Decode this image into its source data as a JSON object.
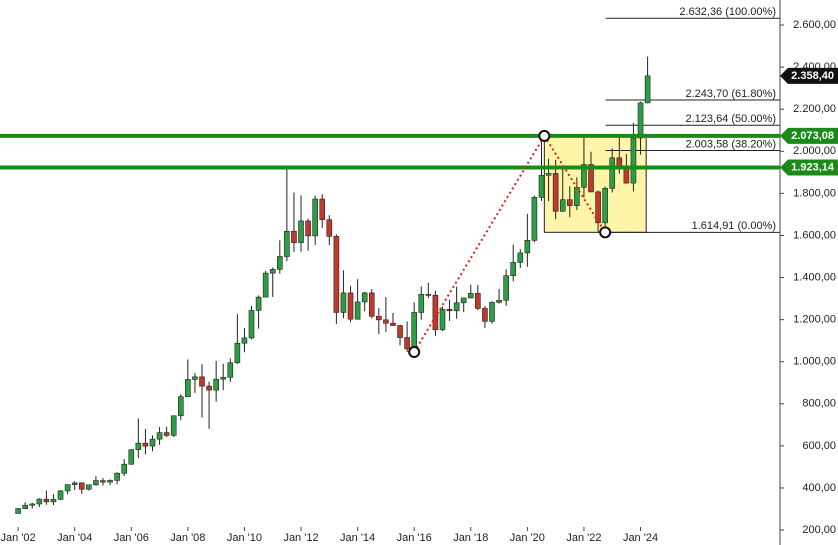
{
  "chart_data": {
    "type": "candlestick",
    "x": [
      2002,
      2002.25,
      2002.5,
      2002.75,
      2003,
      2003.25,
      2003.5,
      2003.75,
      2004,
      2004.25,
      2004.5,
      2004.75,
      2005,
      2005.25,
      2005.5,
      2005.75,
      2006,
      2006.25,
      2006.5,
      2006.75,
      2007,
      2007.25,
      2007.5,
      2007.75,
      2008,
      2008.25,
      2008.5,
      2008.75,
      2009,
      2009.25,
      2009.5,
      2009.75,
      2010,
      2010.25,
      2010.5,
      2010.75,
      2011,
      2011.25,
      2011.5,
      2011.75,
      2012,
      2012.25,
      2012.5,
      2012.75,
      2013,
      2013.25,
      2013.5,
      2013.75,
      2014,
      2014.25,
      2014.5,
      2014.75,
      2015,
      2015.25,
      2015.5,
      2015.75,
      2016,
      2016.25,
      2016.5,
      2016.75,
      2017,
      2017.25,
      2017.5,
      2017.75,
      2018,
      2018.25,
      2018.5,
      2018.75,
      2019,
      2019.25,
      2019.5,
      2019.75,
      2020,
      2020.25,
      2020.5,
      2020.75,
      2021,
      2021.25,
      2021.5,
      2021.75,
      2022,
      2022.25,
      2022.5,
      2022.75,
      2023,
      2023.25,
      2023.5,
      2023.75,
      2024,
      2024.25
    ],
    "open": [
      279,
      302,
      318,
      324,
      347,
      334,
      346,
      386,
      416,
      424,
      394,
      415,
      435,
      428,
      436,
      470,
      513,
      582,
      613,
      599,
      632,
      663,
      650,
      743,
      834,
      916,
      928,
      884,
      865,
      917,
      926,
      995,
      1088,
      1113,
      1244,
      1307,
      1421,
      1439,
      1500,
      1620,
      1566,
      1669,
      1598,
      1773,
      1675,
      1596,
      1234,
      1327,
      1202,
      1284,
      1327,
      1216,
      1199,
      1183,
      1172,
      1115,
      1061,
      1234,
      1320,
      1316,
      1152,
      1249,
      1242,
      1280,
      1303,
      1325,
      1253,
      1192,
      1282,
      1292,
      1409,
      1472,
      1517,
      1577,
      1781,
      1886,
      1895,
      1715,
      1770,
      1742,
      1829,
      1937,
      1807,
      1660,
      1824,
      1969,
      1919,
      1849,
      2063,
      2230
    ],
    "high": [
      305,
      332,
      330,
      351,
      388,
      371,
      390,
      417,
      432,
      427,
      416,
      456,
      447,
      441,
      475,
      537,
      585,
      730,
      680,
      650,
      690,
      691,
      745,
      845,
      1011,
      946,
      988,
      905,
      1004,
      990,
      1016,
      1226,
      1160,
      1265,
      1315,
      1431,
      1448,
      1577,
      1921,
      1804,
      1790,
      1680,
      1790,
      1796,
      1696,
      1605,
      1434,
      1361,
      1392,
      1332,
      1345,
      1255,
      1307,
      1232,
      1175,
      1191,
      1282,
      1358,
      1375,
      1338,
      1262,
      1295,
      1357,
      1298,
      1366,
      1365,
      1265,
      1287,
      1346,
      1439,
      1557,
      1535,
      1703,
      1789,
      2073,
      1965,
      1959,
      1916,
      1834,
      1877,
      2070,
      1998,
      1814,
      1833,
      2014,
      2079,
      1987,
      2135,
      2236,
      2450
    ],
    "low": [
      277,
      300,
      302,
      310,
      320,
      319,
      342,
      370,
      390,
      372,
      388,
      411,
      411,
      414,
      418,
      456,
      510,
      543,
      560,
      574,
      605,
      642,
      643,
      722,
      833,
      852,
      735,
      681,
      810,
      865,
      904,
      990,
      1045,
      1106,
      1157,
      1305,
      1308,
      1418,
      1478,
      1522,
      1523,
      1527,
      1555,
      1636,
      1554,
      1180,
      1207,
      1187,
      1200,
      1240,
      1206,
      1131,
      1142,
      1170,
      1077,
      1046,
      1060,
      1200,
      1302,
      1123,
      1146,
      1194,
      1204,
      1236,
      1302,
      1245,
      1160,
      1180,
      1277,
      1266,
      1382,
      1445,
      1451,
      1568,
      1764,
      1764,
      1677,
      1713,
      1687,
      1721,
      1780,
      1805,
      1615,
      1617,
      1804,
      1893,
      1848,
      1810,
      1984,
      2228
    ],
    "close": [
      302,
      318,
      324,
      347,
      334,
      346,
      386,
      416,
      424,
      394,
      415,
      435,
      428,
      436,
      470,
      513,
      582,
      613,
      599,
      632,
      663,
      650,
      743,
      834,
      916,
      928,
      884,
      865,
      917,
      926,
      995,
      1088,
      1113,
      1244,
      1307,
      1421,
      1439,
      1500,
      1620,
      1566,
      1669,
      1598,
      1773,
      1675,
      1596,
      1234,
      1327,
      1202,
      1284,
      1327,
      1216,
      1199,
      1183,
      1172,
      1115,
      1061,
      1234,
      1320,
      1316,
      1152,
      1249,
      1242,
      1280,
      1303,
      1325,
      1253,
      1192,
      1282,
      1292,
      1409,
      1472,
      1517,
      1577,
      1781,
      1886,
      1895,
      1715,
      1770,
      1742,
      1829,
      1937,
      1807,
      1660,
      1824,
      1969,
      1919,
      1849,
      2063,
      2230,
      2358.4
    ],
    "up_color": "#2e9e44",
    "down_color": "#c0392b",
    "xlim": [
      2001.36,
      2028.93
    ],
    "xticks": [
      {
        "value": 2002,
        "label": "Jan '02"
      },
      {
        "value": 2004,
        "label": "Jan '04"
      },
      {
        "value": 2006,
        "label": "Jan '06"
      },
      {
        "value": 2008,
        "label": "Jan '08"
      },
      {
        "value": 2010,
        "label": "Jan '10"
      },
      {
        "value": 2012,
        "label": "Jan '12"
      },
      {
        "value": 2014,
        "label": "Jan '14"
      },
      {
        "value": 2016,
        "label": "Jan '16"
      },
      {
        "value": 2018,
        "label": "Jan '18"
      },
      {
        "value": 2020,
        "label": "Jan '20"
      },
      {
        "value": 2022,
        "label": "Jan '22"
      },
      {
        "value": 2024,
        "label": "Jan '24"
      }
    ],
    "ylim": [
      129,
      2719
    ],
    "yticks": [
      {
        "value": 200,
        "label": "200,00"
      },
      {
        "value": 400,
        "label": "400,00"
      },
      {
        "value": 600,
        "label": "600,00"
      },
      {
        "value": 800,
        "label": "800,00"
      },
      {
        "value": 1000,
        "label": "1.000,00"
      },
      {
        "value": 1200,
        "label": "1.200,00"
      },
      {
        "value": 1400,
        "label": "1.400,00"
      },
      {
        "value": 1600,
        "label": "1.600,00"
      },
      {
        "value": 1800,
        "label": "1.800,00"
      },
      {
        "value": 2000,
        "label": "2.000,00"
      },
      {
        "value": 2200,
        "label": "2.200,00"
      },
      {
        "value": 2400,
        "label": "2.400,00"
      },
      {
        "value": 2600,
        "label": "2.600,00"
      }
    ],
    "levels": [
      {
        "value": 2073.08,
        "label": "2.073,08",
        "color": "#1a8a1a"
      },
      {
        "value": 1923.14,
        "label": "1.923,14",
        "color": "#1a8a1a"
      }
    ],
    "last_price": {
      "value": 2358.4,
      "label": "2.358,40",
      "color": "#111111"
    },
    "fib": [
      {
        "value": 2632.36,
        "label": "2.632,36 (100.00%)"
      },
      {
        "value": 2243.7,
        "label": "2.243,70 (61.80%)"
      },
      {
        "value": 2123.64,
        "label": "2.123,64 (50.00%)"
      },
      {
        "value": 2003.58,
        "label": "2.003,58 (38.20%)"
      },
      {
        "value": 1614.91,
        "label": "1.614,91 (0.00%)"
      }
    ],
    "fib_start": 2024.25,
    "box": {
      "x": [
        2020.6,
        2024.2
      ],
      "y": [
        1614.91,
        2073.08
      ],
      "color": "#fff5a8"
    },
    "pivots": {
      "x": [
        2016.0,
        2020.6,
        2022.75
      ],
      "y": [
        1046,
        2073.08,
        1614.91
      ],
      "color": "#e02020"
    }
  }
}
